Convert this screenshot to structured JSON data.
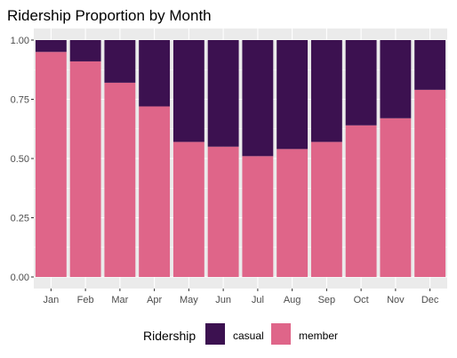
{
  "chart_data": {
    "type": "bar",
    "stacked": true,
    "title": "Ridership Proportion by Month",
    "xlabel": "",
    "ylabel": "",
    "categories": [
      "Jan",
      "Feb",
      "Mar",
      "Apr",
      "May",
      "Jun",
      "Jul",
      "Aug",
      "Sep",
      "Oct",
      "Nov",
      "Dec"
    ],
    "ylim": [
      0,
      1
    ],
    "yticks": [
      "0.00",
      "0.25",
      "0.50",
      "0.75",
      "1.00"
    ],
    "ytick_values": [
      0,
      0.25,
      0.5,
      0.75,
      1
    ],
    "grid": true,
    "legend": {
      "title": "Ridership",
      "position": "bottom"
    },
    "series": [
      {
        "name": "member",
        "color": "#df6589",
        "values": [
          0.95,
          0.91,
          0.82,
          0.72,
          0.57,
          0.55,
          0.51,
          0.54,
          0.57,
          0.64,
          0.67,
          0.79
        ]
      },
      {
        "name": "casual",
        "color": "#3c1150",
        "values": [
          0.05,
          0.09,
          0.18,
          0.28,
          0.43,
          0.45,
          0.49,
          0.46,
          0.43,
          0.36,
          0.33,
          0.21
        ]
      }
    ],
    "legend_order": [
      "casual",
      "member"
    ],
    "panel_background": "#ebebeb",
    "grid_color": "#ffffff"
  }
}
